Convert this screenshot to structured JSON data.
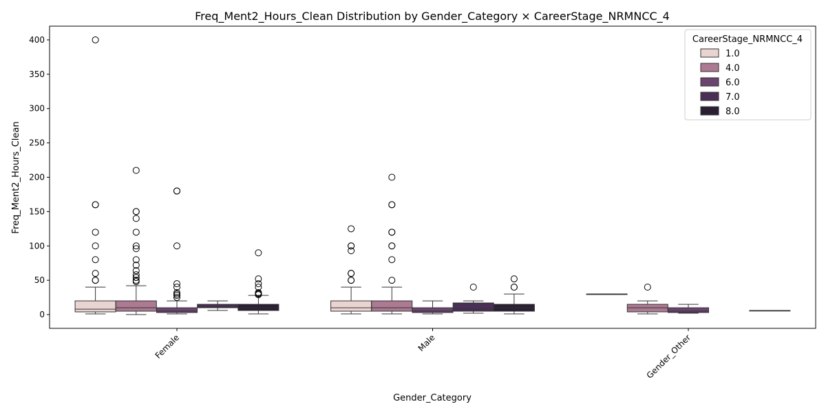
{
  "chart_data": {
    "type": "box",
    "title": "Freq_Ment2_Hours_Clean Distribution by Gender_Category × CareerStage_NRMNCC_4",
    "xlabel": "Gender_Category",
    "ylabel": "Freq_Ment2_Hours_Clean",
    "ylim": [
      -20,
      420
    ],
    "yticks": [
      0,
      50,
      100,
      150,
      200,
      250,
      300,
      350,
      400
    ],
    "categories": [
      "Female",
      "Male",
      "Gender_Other"
    ],
    "legend": {
      "title": "CareerStage_NRMNCC_4",
      "placement": "top-right",
      "entries": [
        "1.0",
        "4.0",
        "6.0",
        "7.0",
        "8.0"
      ]
    },
    "grid": false,
    "series": [
      {
        "name": "1.0",
        "color": "#ead4d2",
        "boxes": [
          {
            "category": "Female",
            "whisker_low": 1,
            "q1": 4,
            "median": 8,
            "q3": 20,
            "whisker_high": 40,
            "outliers": [
              400,
              160,
              160,
              120,
              100,
              80,
              60,
              50,
              50
            ]
          },
          {
            "category": "Male",
            "whisker_low": 1,
            "q1": 5,
            "median": 10,
            "q3": 20,
            "whisker_high": 40,
            "outliers": [
              125,
              100,
              100,
              93,
              60,
              60,
              50,
              50
            ]
          },
          {
            "category": "Gender_Other",
            "whisker_low": 30,
            "q1": 30,
            "median": 30,
            "q3": 30,
            "whisker_high": 30,
            "outliers": []
          }
        ]
      },
      {
        "name": "4.0",
        "color": "#ad7a93",
        "boxes": [
          {
            "category": "Female",
            "whisker_low": 0,
            "q1": 5,
            "median": 10,
            "q3": 20,
            "whisker_high": 42,
            "outliers": [
              210,
              150,
              150,
              140,
              120,
              100,
              96,
              80,
              72,
              64,
              58,
              54,
              50,
              48
            ]
          },
          {
            "category": "Male",
            "whisker_low": 1,
            "q1": 5,
            "median": 10,
            "q3": 20,
            "whisker_high": 40,
            "outliers": [
              200,
              160,
              160,
              120,
              120,
              100,
              100,
              80,
              50
            ]
          },
          {
            "category": "Gender_Other",
            "whisker_low": 1,
            "q1": 4,
            "median": 10,
            "q3": 15,
            "whisker_high": 20,
            "outliers": [
              40
            ]
          }
        ]
      },
      {
        "name": "6.0",
        "color": "#6b4570",
        "boxes": [
          {
            "category": "Female",
            "whisker_low": 1,
            "q1": 3,
            "median": 5,
            "q3": 10,
            "whisker_high": 20,
            "outliers": [
              180,
              180,
              100,
              45,
              40,
              32,
              30,
              28,
              25
            ]
          },
          {
            "category": "Male",
            "whisker_low": 1,
            "q1": 3,
            "median": 5,
            "q3": 10,
            "whisker_high": 20,
            "outliers": []
          },
          {
            "category": "Gender_Other",
            "whisker_low": 2,
            "q1": 3,
            "median": 5,
            "q3": 10,
            "whisker_high": 15,
            "outliers": []
          }
        ]
      },
      {
        "name": "7.0",
        "color": "#4a2f57",
        "boxes": [
          {
            "category": "Female",
            "whisker_low": 6,
            "q1": 10,
            "median": 12,
            "q3": 15,
            "whisker_high": 20,
            "outliers": []
          },
          {
            "category": "Male",
            "whisker_low": 2,
            "q1": 5,
            "median": 8,
            "q3": 17,
            "whisker_high": 20,
            "outliers": [
              40
            ]
          },
          {
            "category": "Gender_Other",
            "whisker_low": null,
            "q1": null,
            "median": null,
            "q3": null,
            "whisker_high": null,
            "outliers": []
          }
        ]
      },
      {
        "name": "8.0",
        "color": "#2a1f33",
        "boxes": [
          {
            "category": "Female",
            "whisker_low": 1,
            "q1": 6,
            "median": 10,
            "q3": 15,
            "whisker_high": 28,
            "outliers": [
              90,
              52,
              45,
              40,
              32,
              31,
              30,
              29
            ]
          },
          {
            "category": "Male",
            "whisker_low": 1,
            "q1": 5,
            "median": 10,
            "q3": 15,
            "whisker_high": 30,
            "outliers": [
              52,
              40,
              40
            ]
          },
          {
            "category": "Gender_Other",
            "whisker_low": 6,
            "q1": 6,
            "median": 6,
            "q3": 6,
            "whisker_high": 6,
            "outliers": []
          }
        ]
      }
    ]
  }
}
